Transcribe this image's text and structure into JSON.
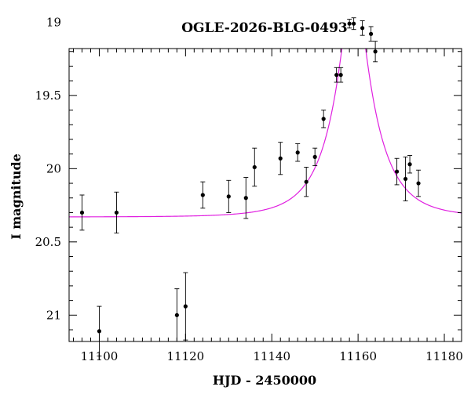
{
  "chart_data": {
    "type": "scatter",
    "title": "OGLE-2026-BLG-0493",
    "xlabel": "HJD - 2450000",
    "ylabel": "I magnitude",
    "xlim": [
      11093,
      11184
    ],
    "ylim": [
      21.18,
      19.18
    ],
    "y_inverted": true,
    "x_ticks": [
      11100,
      11120,
      11140,
      11160,
      11180
    ],
    "x_tick_labels": [
      "11100",
      "11120",
      "11140",
      "11160",
      "11180"
    ],
    "y_ticks": [
      19,
      19.5,
      20,
      20.5,
      21
    ],
    "y_tick_labels": [
      "19",
      "19.5",
      "20",
      "20.5",
      "21"
    ],
    "grid": false,
    "model_color": "#e020e0",
    "point_color": "#000000",
    "series": [
      {
        "type": "scatter_errorbar",
        "points": [
          {
            "x": 11096.0,
            "y": 20.3,
            "err": 0.12
          },
          {
            "x": 11100.0,
            "y": 21.11,
            "err": 0.17
          },
          {
            "x": 11104.0,
            "y": 20.3,
            "err": 0.14
          },
          {
            "x": 11118.0,
            "y": 21.0,
            "err": 0.18
          },
          {
            "x": 11120.0,
            "y": 20.94,
            "err": 0.23
          },
          {
            "x": 11124.0,
            "y": 20.18,
            "err": 0.09
          },
          {
            "x": 11130.0,
            "y": 20.19,
            "err": 0.11
          },
          {
            "x": 11134.0,
            "y": 20.2,
            "err": 0.14
          },
          {
            "x": 11136.0,
            "y": 19.99,
            "err": 0.13
          },
          {
            "x": 11142.0,
            "y": 19.93,
            "err": 0.11
          },
          {
            "x": 11146.0,
            "y": 19.89,
            "err": 0.06
          },
          {
            "x": 11148.0,
            "y": 20.09,
            "err": 0.1
          },
          {
            "x": 11150.0,
            "y": 19.92,
            "err": 0.06
          },
          {
            "x": 11152.0,
            "y": 19.66,
            "err": 0.06
          },
          {
            "x": 11155.0,
            "y": 19.36,
            "err": 0.05
          },
          {
            "x": 11156.0,
            "y": 19.36,
            "err": 0.05
          },
          {
            "x": 11158.0,
            "y": 19.01,
            "err": 0.03
          },
          {
            "x": 11159.0,
            "y": 19.01,
            "err": 0.04
          },
          {
            "x": 11161.0,
            "y": 19.04,
            "err": 0.05
          },
          {
            "x": 11163.0,
            "y": 19.08,
            "err": 0.05
          },
          {
            "x": 11164.0,
            "y": 19.2,
            "err": 0.07
          },
          {
            "x": 11169.0,
            "y": 20.02,
            "err": 0.09
          },
          {
            "x": 11171.0,
            "y": 20.07,
            "err": 0.15
          },
          {
            "x": 11172.0,
            "y": 19.97,
            "err": 0.06
          },
          {
            "x": 11174.0,
            "y": 20.1,
            "err": 0.09
          }
        ]
      },
      {
        "type": "line",
        "model": {
          "t0": 11159.0,
          "tE": 9.5,
          "u0": 0.22,
          "base_mag": 20.33
        }
      }
    ]
  }
}
